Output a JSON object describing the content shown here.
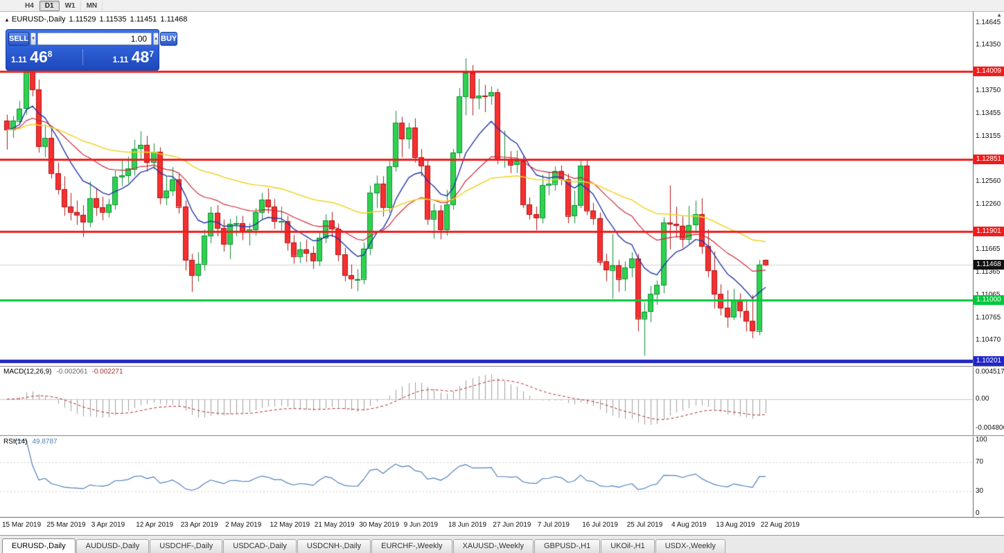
{
  "icons": {
    "marker": "▲",
    "scroll_up": "▲",
    "spin_down": "▼",
    "spin_up": "▲"
  },
  "toolbar": {
    "timeframes": [
      {
        "label": "H4",
        "active": false
      },
      {
        "label": "D1",
        "active": true
      },
      {
        "label": "W1",
        "active": false
      },
      {
        "label": "MN",
        "active": false
      }
    ]
  },
  "chart": {
    "title": {
      "symbol": "EURUSD-,Daily",
      "open": "1.11529",
      "high": "1.11535",
      "low": "1.11451",
      "close": "1.11468"
    }
  },
  "trade_widget": {
    "sell_label": "SELL",
    "buy_label": "BUY",
    "volume": "1.00",
    "sell_price": {
      "int": "1.11",
      "pips": "46",
      "pt": "8"
    },
    "buy_price": {
      "int": "1.11",
      "pips": "48",
      "pt": "7"
    }
  },
  "price_axis": {
    "ticks": [
      {
        "text": "1.14645",
        "value": 1.14645
      },
      {
        "text": "1.14350",
        "value": 1.1435
      },
      {
        "text": "1.13750",
        "value": 1.1375
      },
      {
        "text": "1.13455",
        "value": 1.13455
      },
      {
        "text": "1.13155",
        "value": 1.13155
      },
      {
        "text": "1.12560",
        "value": 1.1256
      },
      {
        "text": "1.12260",
        "value": 1.1226
      },
      {
        "text": "1.11665",
        "value": 1.11665
      },
      {
        "text": "1.11365",
        "value": 1.11365
      },
      {
        "text": "1.11065",
        "value": 1.11065
      },
      {
        "text": "1.10765",
        "value": 1.10765
      },
      {
        "text": "1.10470",
        "value": 1.1047
      }
    ],
    "badges": [
      {
        "text": "1.14009",
        "value": 1.14009,
        "color": "#ef1d1d"
      },
      {
        "text": "1.12851",
        "value": 1.12851,
        "color": "#ef1d1d"
      },
      {
        "text": "1.11901",
        "value": 1.11901,
        "color": "#ef1d1d"
      },
      {
        "text": "1.11000",
        "value": 1.11,
        "color": "#00c83c"
      },
      {
        "text": "1.10201",
        "value": 1.10201,
        "color": "#2026c8"
      },
      {
        "text": "1.11468",
        "value": 1.11468,
        "color": "#111111"
      }
    ]
  },
  "indicator_macd": {
    "name": "MACD(12,26,9)",
    "main_value": "-0.002061",
    "signal_value": "-0.002271",
    "axis": [
      {
        "text": "0.004517",
        "value": 0.004517
      },
      {
        "text": "0.00",
        "value": 0
      },
      {
        "text": "-0.004806",
        "value": -0.004806
      }
    ]
  },
  "indicator_rsi": {
    "name": "RSI(14)",
    "value": "49.8787",
    "axis": [
      {
        "text": "100",
        "value": 100
      },
      {
        "text": "70",
        "value": 70
      },
      {
        "text": "30",
        "value": 30
      },
      {
        "text": "0",
        "value": 0
      }
    ]
  },
  "tabs": [
    {
      "label": "EURUSD-,Daily",
      "active": true
    },
    {
      "label": "AUDUSD-,Daily",
      "active": false
    },
    {
      "label": "USDCHF-,Daily",
      "active": false
    },
    {
      "label": "USDCAD-,Daily",
      "active": false
    },
    {
      "label": "USDCNH-,Daily",
      "active": false
    },
    {
      "label": "EURCHF-,Weekly",
      "active": false
    },
    {
      "label": "XAUUSD-,Weekly",
      "active": false
    },
    {
      "label": "GBPUSD-,H1",
      "active": false
    },
    {
      "label": "UKOil-,H1",
      "active": false
    },
    {
      "label": "USDX-,Weekly",
      "active": false
    }
  ],
  "chart_data": {
    "type": "candlestick",
    "symbol": "EURUSD",
    "timeframe": "Daily",
    "ylim": [
      1.10137,
      1.14791
    ],
    "bid": 1.11468,
    "x_labels": [
      "15 Mar 2019",
      "25 Mar 2019",
      "3 Apr 2019",
      "12 Apr 2019",
      "23 Apr 2019",
      "2 May 2019",
      "12 May 2019",
      "21 May 2019",
      "30 May 2019",
      "9 Jun 2019",
      "18 Jun 2019",
      "27 Jun 2019",
      "7 Jul 2019",
      "16 Jul 2019",
      "25 Jul 2019",
      "4 Aug 2019",
      "13 Aug 2019",
      "22 Aug 2019"
    ],
    "x_label_step": 7,
    "candle_colors": {
      "up_fill": "#2fd24f",
      "up_stroke": "#0e8f33",
      "down_fill": "#f53030",
      "down_stroke": "#b11414"
    },
    "horizontal_lines": [
      {
        "value": 1.14009,
        "color": "#ef1d1d",
        "width": 3
      },
      {
        "value": 1.12851,
        "color": "#ef1d1d",
        "width": 3
      },
      {
        "value": 1.11901,
        "color": "#ef1d1d",
        "width": 3
      },
      {
        "value": 1.11,
        "color": "#00c83c",
        "width": 3
      },
      {
        "value": 1.10201,
        "color": "#2026c8",
        "width": 5
      }
    ],
    "moving_averages": [
      {
        "period": 10,
        "color": "#2233aa",
        "width": 1.4
      },
      {
        "period": 24,
        "color": "#cc2233",
        "width": 1.2
      },
      {
        "period": 55,
        "color": "#f0d42e",
        "width": 1.6
      }
    ],
    "subcharts": [
      {
        "type": "macd",
        "params": [
          12,
          26,
          9
        ],
        "ylim": [
          -0.006,
          0.0053
        ],
        "histogram_color": "#9e9e9e",
        "signal_color": "#b22828"
      },
      {
        "type": "rsi",
        "period": 14,
        "ylim": [
          -5,
          105
        ],
        "levels": [
          30,
          70
        ],
        "line_color": "#4d7fbd"
      }
    ],
    "ohlc": [
      [
        1.1336,
        1.1344,
        1.1298,
        1.1324
      ],
      [
        1.1324,
        1.1342,
        1.1313,
        1.1336
      ],
      [
        1.1336,
        1.1362,
        1.133,
        1.1352
      ],
      [
        1.1352,
        1.1448,
        1.1344,
        1.1438
      ],
      [
        1.1438,
        1.1451,
        1.1368,
        1.1377
      ],
      [
        1.1377,
        1.139,
        1.1294,
        1.1302
      ],
      [
        1.1302,
        1.1331,
        1.1288,
        1.1313
      ],
      [
        1.1313,
        1.1326,
        1.126,
        1.1267
      ],
      [
        1.1267,
        1.1281,
        1.1239,
        1.1246
      ],
      [
        1.1246,
        1.1263,
        1.1211,
        1.1223
      ],
      [
        1.1223,
        1.1241,
        1.1205,
        1.1216
      ],
      [
        1.1216,
        1.1231,
        1.1199,
        1.1212
      ],
      [
        1.1212,
        1.1225,
        1.1183,
        1.1203
      ],
      [
        1.1203,
        1.1256,
        1.1196,
        1.1234
      ],
      [
        1.1234,
        1.1246,
        1.1211,
        1.1222
      ],
      [
        1.1222,
        1.1236,
        1.1205,
        1.1216
      ],
      [
        1.1216,
        1.1233,
        1.1209,
        1.1226
      ],
      [
        1.1226,
        1.1271,
        1.1219,
        1.1262
      ],
      [
        1.1262,
        1.1286,
        1.125,
        1.1264
      ],
      [
        1.1264,
        1.1289,
        1.1254,
        1.1273
      ],
      [
        1.1273,
        1.1311,
        1.1264,
        1.1299
      ],
      [
        1.1299,
        1.1322,
        1.1285,
        1.1304
      ],
      [
        1.1304,
        1.1316,
        1.1269,
        1.1281
      ],
      [
        1.1281,
        1.1306,
        1.1272,
        1.1295
      ],
      [
        1.1295,
        1.1301,
        1.1226,
        1.1235
      ],
      [
        1.1235,
        1.1263,
        1.1225,
        1.1244
      ],
      [
        1.1244,
        1.1275,
        1.1237,
        1.1259
      ],
      [
        1.1259,
        1.1266,
        1.1214,
        1.1223
      ],
      [
        1.1223,
        1.1231,
        1.1139,
        1.1153
      ],
      [
        1.1153,
        1.1161,
        1.1111,
        1.1133
      ],
      [
        1.1133,
        1.1163,
        1.1125,
        1.1148
      ],
      [
        1.1148,
        1.1193,
        1.1139,
        1.1185
      ],
      [
        1.1185,
        1.1223,
        1.1175,
        1.1215
      ],
      [
        1.1215,
        1.1225,
        1.1184,
        1.1195
      ],
      [
        1.1195,
        1.1206,
        1.1164,
        1.1174
      ],
      [
        1.1174,
        1.1207,
        1.1154,
        1.12
      ],
      [
        1.12,
        1.1211,
        1.1184,
        1.1201
      ],
      [
        1.1201,
        1.1211,
        1.1179,
        1.1191
      ],
      [
        1.1191,
        1.1201,
        1.1172,
        1.1193
      ],
      [
        1.1193,
        1.1221,
        1.1185,
        1.1216
      ],
      [
        1.1216,
        1.1241,
        1.1205,
        1.1232
      ],
      [
        1.1232,
        1.1247,
        1.1214,
        1.1223
      ],
      [
        1.1223,
        1.1233,
        1.1194,
        1.1204
      ],
      [
        1.1204,
        1.1223,
        1.1191,
        1.1204
      ],
      [
        1.1204,
        1.1211,
        1.1165,
        1.1176
      ],
      [
        1.1176,
        1.1186,
        1.1148,
        1.1158
      ],
      [
        1.1158,
        1.1177,
        1.1149,
        1.1167
      ],
      [
        1.1167,
        1.118,
        1.115,
        1.1162
      ],
      [
        1.1162,
        1.1171,
        1.1141,
        1.1152
      ],
      [
        1.1152,
        1.1189,
        1.1145,
        1.1182
      ],
      [
        1.1182,
        1.1213,
        1.1175,
        1.1205
      ],
      [
        1.1205,
        1.1216,
        1.1183,
        1.1194
      ],
      [
        1.1194,
        1.1201,
        1.1151,
        1.116
      ],
      [
        1.116,
        1.1169,
        1.1125,
        1.1133
      ],
      [
        1.1133,
        1.1147,
        1.1115,
        1.1128
      ],
      [
        1.1128,
        1.1141,
        1.1112,
        1.1128
      ],
      [
        1.1128,
        1.1176,
        1.1121,
        1.1168
      ],
      [
        1.1168,
        1.1251,
        1.1159,
        1.1241
      ],
      [
        1.1241,
        1.1264,
        1.1221,
        1.1253
      ],
      [
        1.1253,
        1.1263,
        1.121,
        1.1222
      ],
      [
        1.1222,
        1.1285,
        1.1215,
        1.1276
      ],
      [
        1.1276,
        1.1349,
        1.1269,
        1.1333
      ],
      [
        1.1333,
        1.1341,
        1.1288,
        1.1312
      ],
      [
        1.1312,
        1.1333,
        1.1299,
        1.1327
      ],
      [
        1.1327,
        1.1339,
        1.1281,
        1.1288
      ],
      [
        1.1288,
        1.1299,
        1.1263,
        1.1277
      ],
      [
        1.1277,
        1.1284,
        1.1199,
        1.1207
      ],
      [
        1.1207,
        1.1227,
        1.1181,
        1.1218
      ],
      [
        1.1218,
        1.1225,
        1.118,
        1.1193
      ],
      [
        1.1193,
        1.1245,
        1.1185,
        1.1226
      ],
      [
        1.1226,
        1.1299,
        1.1219,
        1.1294
      ],
      [
        1.1294,
        1.1379,
        1.1287,
        1.1368
      ],
      [
        1.1368,
        1.1418,
        1.1343,
        1.1399
      ],
      [
        1.1399,
        1.1409,
        1.1343,
        1.1366
      ],
      [
        1.1366,
        1.1391,
        1.1351,
        1.1369
      ],
      [
        1.1369,
        1.1383,
        1.1347,
        1.1368
      ],
      [
        1.1368,
        1.1381,
        1.1357,
        1.1373
      ],
      [
        1.1373,
        1.1378,
        1.1279,
        1.1285
      ],
      [
        1.1285,
        1.1323,
        1.1274,
        1.1285
      ],
      [
        1.1285,
        1.1296,
        1.1267,
        1.1278
      ],
      [
        1.1278,
        1.1297,
        1.1267,
        1.1283
      ],
      [
        1.1283,
        1.1289,
        1.1221,
        1.1226
      ],
      [
        1.1226,
        1.1235,
        1.1206,
        1.1213
      ],
      [
        1.1213,
        1.1223,
        1.1192,
        1.1208
      ],
      [
        1.1208,
        1.1265,
        1.1201,
        1.1251
      ],
      [
        1.1251,
        1.1269,
        1.1238,
        1.1253
      ],
      [
        1.1253,
        1.1276,
        1.1244,
        1.127
      ],
      [
        1.127,
        1.1277,
        1.1251,
        1.1259
      ],
      [
        1.1259,
        1.1266,
        1.1201,
        1.1211
      ],
      [
        1.1211,
        1.1244,
        1.1201,
        1.1225
      ],
      [
        1.1225,
        1.1283,
        1.1221,
        1.1277
      ],
      [
        1.1277,
        1.1284,
        1.1212,
        1.1218
      ],
      [
        1.1218,
        1.1228,
        1.1199,
        1.1208
      ],
      [
        1.1208,
        1.1215,
        1.1146,
        1.1151
      ],
      [
        1.1151,
        1.1161,
        1.1125,
        1.114
      ],
      [
        1.114,
        1.1187,
        1.1102,
        1.1146
      ],
      [
        1.1146,
        1.1153,
        1.1111,
        1.1128
      ],
      [
        1.1128,
        1.1151,
        1.1112,
        1.1143
      ],
      [
        1.1143,
        1.1163,
        1.113,
        1.1155
      ],
      [
        1.1155,
        1.1161,
        1.1059,
        1.1076
      ],
      [
        1.1076,
        1.1097,
        1.1027,
        1.1085
      ],
      [
        1.1085,
        1.1119,
        1.1071,
        1.1108
      ],
      [
        1.1108,
        1.1126,
        1.1094,
        1.112
      ],
      [
        1.112,
        1.1209,
        1.1109,
        1.1202
      ],
      [
        1.1202,
        1.1251,
        1.1167,
        1.12
      ],
      [
        1.12,
        1.1223,
        1.1182,
        1.1198
      ],
      [
        1.1198,
        1.121,
        1.1169,
        1.1181
      ],
      [
        1.1181,
        1.1224,
        1.1174,
        1.1199
      ],
      [
        1.1199,
        1.1231,
        1.1189,
        1.1213
      ],
      [
        1.1213,
        1.1234,
        1.1161,
        1.1171
      ],
      [
        1.1171,
        1.1193,
        1.113,
        1.1139
      ],
      [
        1.1139,
        1.1164,
        1.1089,
        1.1108
      ],
      [
        1.1108,
        1.1121,
        1.108,
        1.109
      ],
      [
        1.109,
        1.1113,
        1.1064,
        1.1078
      ],
      [
        1.1078,
        1.1115,
        1.1074,
        1.11
      ],
      [
        1.11,
        1.1109,
        1.1077,
        1.1086
      ],
      [
        1.1086,
        1.1101,
        1.1059,
        1.1073
      ],
      [
        1.1073,
        1.1107,
        1.105,
        1.106
      ],
      [
        1.106,
        1.1153,
        1.1054,
        1.1147
      ],
      [
        1.11529,
        1.11535,
        1.11451,
        1.11468
      ]
    ]
  }
}
